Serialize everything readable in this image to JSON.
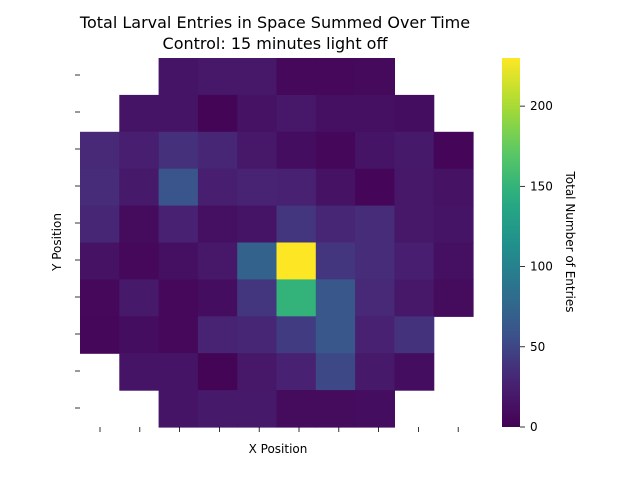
{
  "chart_data": {
    "type": "heatmap",
    "title": "Total Larval Entries in Space Summed Over Time",
    "subtitle": "Control: 15 minutes light off",
    "xlabel": "X Position",
    "ylabel": "Y Position",
    "colorbar_label": "Total Number of Entries",
    "colormap": "viridis",
    "vmin": 0,
    "vmax": 230,
    "colorbar_ticks": [
      0,
      50,
      100,
      150,
      200
    ],
    "x_tick_labels": [
      "",
      "",
      "",
      "",
      "",
      "",
      "",
      "",
      "",
      ""
    ],
    "y_tick_labels": [
      "",
      "",
      "",
      "",
      "",
      "",
      "",
      "",
      "",
      ""
    ],
    "values": [
      [
        null,
        null,
        16,
        18,
        18,
        6,
        6,
        7,
        null,
        null,
        null
      ],
      [
        null,
        16,
        16,
        3,
        14,
        18,
        12,
        12,
        10,
        null,
        null
      ],
      [
        32,
        24,
        36,
        30,
        18,
        10,
        5,
        16,
        20,
        4,
        null
      ],
      [
        34,
        20,
        60,
        24,
        28,
        26,
        14,
        4,
        18,
        14,
        null
      ],
      [
        30,
        8,
        26,
        12,
        16,
        40,
        30,
        34,
        18,
        16,
        null
      ],
      [
        14,
        6,
        12,
        18,
        72,
        230,
        40,
        34,
        24,
        12,
        null
      ],
      [
        6,
        20,
        6,
        10,
        40,
        150,
        62,
        32,
        18,
        8,
        null
      ],
      [
        5,
        10,
        6,
        28,
        30,
        44,
        62,
        26,
        38,
        null,
        null
      ],
      [
        null,
        16,
        16,
        3,
        18,
        26,
        52,
        20,
        10,
        null,
        null
      ],
      [
        null,
        null,
        16,
        20,
        20,
        8,
        8,
        10,
        null,
        null,
        null
      ]
    ]
  }
}
